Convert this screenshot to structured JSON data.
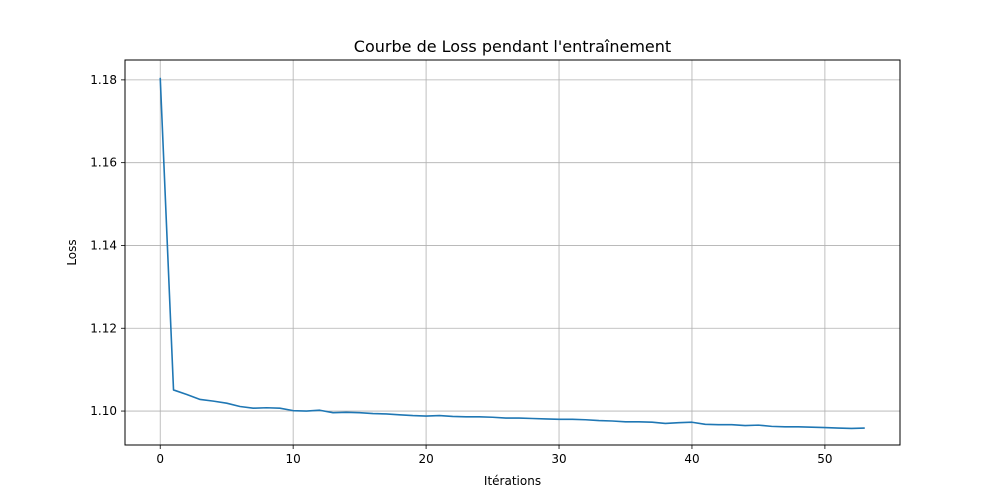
{
  "chart_data": {
    "type": "line",
    "title": "Courbe de Loss pendant l'entraînement",
    "xlabel": "Itérations",
    "ylabel": "Loss",
    "xlim": [
      -2.65,
      55.65
    ],
    "ylim": [
      1.0918,
      1.1848
    ],
    "xticks": [
      0,
      10,
      20,
      30,
      40,
      50
    ],
    "xtick_labels": [
      "0",
      "10",
      "20",
      "30",
      "40",
      "50"
    ],
    "yticks": [
      1.1,
      1.12,
      1.14,
      1.16,
      1.18
    ],
    "ytick_labels": [
      "1.10",
      "1.12",
      "1.14",
      "1.16",
      "1.18"
    ],
    "grid": true,
    "series": [
      {
        "color": "#1f77b4",
        "x": [
          0,
          1,
          2,
          3,
          4,
          5,
          6,
          7,
          8,
          9,
          10,
          11,
          12,
          13,
          14,
          15,
          16,
          17,
          18,
          19,
          20,
          21,
          22,
          23,
          24,
          25,
          26,
          27,
          28,
          29,
          30,
          31,
          32,
          33,
          34,
          35,
          36,
          37,
          38,
          39,
          40,
          41,
          42,
          43,
          44,
          45,
          46,
          47,
          48,
          49,
          50,
          51,
          52,
          53
        ],
        "y": [
          1.1805,
          1.1051,
          1.104,
          1.1028,
          1.1024,
          1.1019,
          1.1011,
          1.1007,
          1.1008,
          1.1007,
          1.1001,
          1.1,
          1.1002,
          1.0996,
          1.0997,
          1.0996,
          1.0994,
          1.0993,
          1.0991,
          1.0989,
          1.0988,
          1.0989,
          1.0987,
          1.0986,
          1.0986,
          1.0985,
          1.0983,
          1.0983,
          1.0982,
          1.0981,
          1.098,
          1.098,
          1.0979,
          1.0977,
          1.0976,
          1.0974,
          1.0974,
          1.0973,
          1.097,
          1.0972,
          1.0973,
          1.0968,
          1.0967,
          1.0967,
          1.0965,
          1.0966,
          1.0963,
          1.0962,
          1.0962,
          1.0961,
          1.096,
          1.0959,
          1.0958,
          1.0959
        ]
      }
    ]
  }
}
